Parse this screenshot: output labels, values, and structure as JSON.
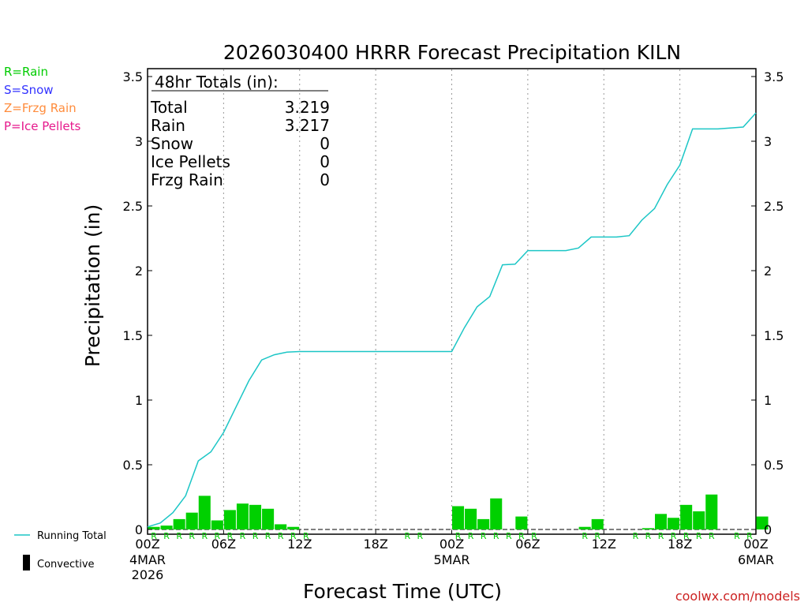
{
  "chart_data": {
    "type": "bar",
    "title": "2026030400 HRRR Forecast Precipitation KILN",
    "xlabel": "Forecast Time (UTC)",
    "ylabel": "Precipitation (in)",
    "ylim": [
      0,
      3.5
    ],
    "xlim_hours": [
      0,
      48
    ],
    "yticks": [
      "0",
      "0.5",
      "1",
      "1.5",
      "2",
      "2.5",
      "3",
      "3.5"
    ],
    "xticks": [
      {
        "hour": 0,
        "label": "00Z",
        "date": "4MAR",
        "year": "2026"
      },
      {
        "hour": 6,
        "label": "06Z",
        "date": "",
        "year": ""
      },
      {
        "hour": 12,
        "label": "12Z",
        "date": "",
        "year": ""
      },
      {
        "hour": 18,
        "label": "18Z",
        "date": "",
        "year": ""
      },
      {
        "hour": 24,
        "label": "00Z",
        "date": "5MAR",
        "year": ""
      },
      {
        "hour": 30,
        "label": "06Z",
        "date": "",
        "year": ""
      },
      {
        "hour": 36,
        "label": "12Z",
        "date": "",
        "year": ""
      },
      {
        "hour": 42,
        "label": "18Z",
        "date": "",
        "year": ""
      },
      {
        "hour": 48,
        "label": "00Z",
        "date": "6MAR",
        "year": ""
      }
    ],
    "hourly_rain": [
      0.02,
      0.03,
      0.08,
      0.13,
      0.26,
      0.07,
      0.15,
      0.2,
      0.19,
      0.16,
      0.04,
      0.02,
      0,
      0,
      0,
      0,
      0,
      0,
      0,
      0,
      0,
      0,
      0,
      0,
      0.18,
      0.16,
      0.08,
      0.24,
      0,
      0.1,
      0,
      0,
      0,
      0,
      0.02,
      0.08,
      0,
      0,
      0,
      0.01,
      0.12,
      0.09,
      0.19,
      0.14,
      0.27,
      0,
      0,
      0,
      0.1
    ],
    "running_total": [
      [
        0,
        0.02
      ],
      [
        1,
        0.05
      ],
      [
        2,
        0.13
      ],
      [
        3,
        0.26
      ],
      [
        4,
        0.53
      ],
      [
        5,
        0.6
      ],
      [
        6,
        0.75
      ],
      [
        7,
        0.95
      ],
      [
        8,
        1.15
      ],
      [
        9,
        1.31
      ],
      [
        10,
        1.35
      ],
      [
        11,
        1.37
      ],
      [
        12,
        1.375
      ],
      [
        24,
        1.375
      ],
      [
        25,
        1.56
      ],
      [
        26,
        1.72
      ],
      [
        27,
        1.8
      ],
      [
        28,
        2.045
      ],
      [
        29,
        2.05
      ],
      [
        30,
        2.155
      ],
      [
        33,
        2.155
      ],
      [
        34,
        2.175
      ],
      [
        35,
        2.26
      ],
      [
        37,
        2.26
      ],
      [
        38,
        2.27
      ],
      [
        39,
        2.39
      ],
      [
        40,
        2.48
      ],
      [
        41,
        2.665
      ],
      [
        42,
        2.815
      ],
      [
        43,
        3.095
      ],
      [
        45,
        3.095
      ],
      [
        47,
        3.11
      ],
      [
        48,
        3.219
      ]
    ],
    "rain_marker_hours": [
      1,
      2,
      3,
      4,
      5,
      6,
      7,
      8,
      9,
      10,
      11,
      12,
      13,
      21,
      22,
      25,
      26,
      27,
      28,
      29,
      30,
      31,
      35,
      36,
      39,
      40,
      41,
      42,
      43,
      44,
      45,
      47,
      48
    ],
    "rain_marker_letter": "R",
    "totals_box": {
      "heading": "48hr Totals (in):",
      "rows": [
        {
          "label": "Total",
          "value": "3.219"
        },
        {
          "label": "Rain",
          "value": "3.217"
        },
        {
          "label": "Snow",
          "value": "0"
        },
        {
          "label": "Ice Pellets",
          "value": "0"
        },
        {
          "label": "Frzg Rain",
          "value": "0"
        }
      ]
    },
    "precip_legend": [
      {
        "text": "R=Rain",
        "color": "#00cc00"
      },
      {
        "text": "S=Snow",
        "color": "#3333ff"
      },
      {
        "text": "Z=Frzg Rain",
        "color": "#ff8c3c"
      },
      {
        "text": "P=Ice Pellets",
        "color": "#e6198c"
      }
    ],
    "series_legend": [
      {
        "text": "Running Total",
        "kind": "line",
        "color": "#1cc6c6"
      },
      {
        "text": "Convective",
        "kind": "bar",
        "color": "#000000"
      }
    ],
    "colors": {
      "bar": "#00d000",
      "line": "#1cc6c6",
      "grid": "#999999",
      "axis": "#000000"
    },
    "grid": true,
    "credit": "coolwx.com/models"
  }
}
